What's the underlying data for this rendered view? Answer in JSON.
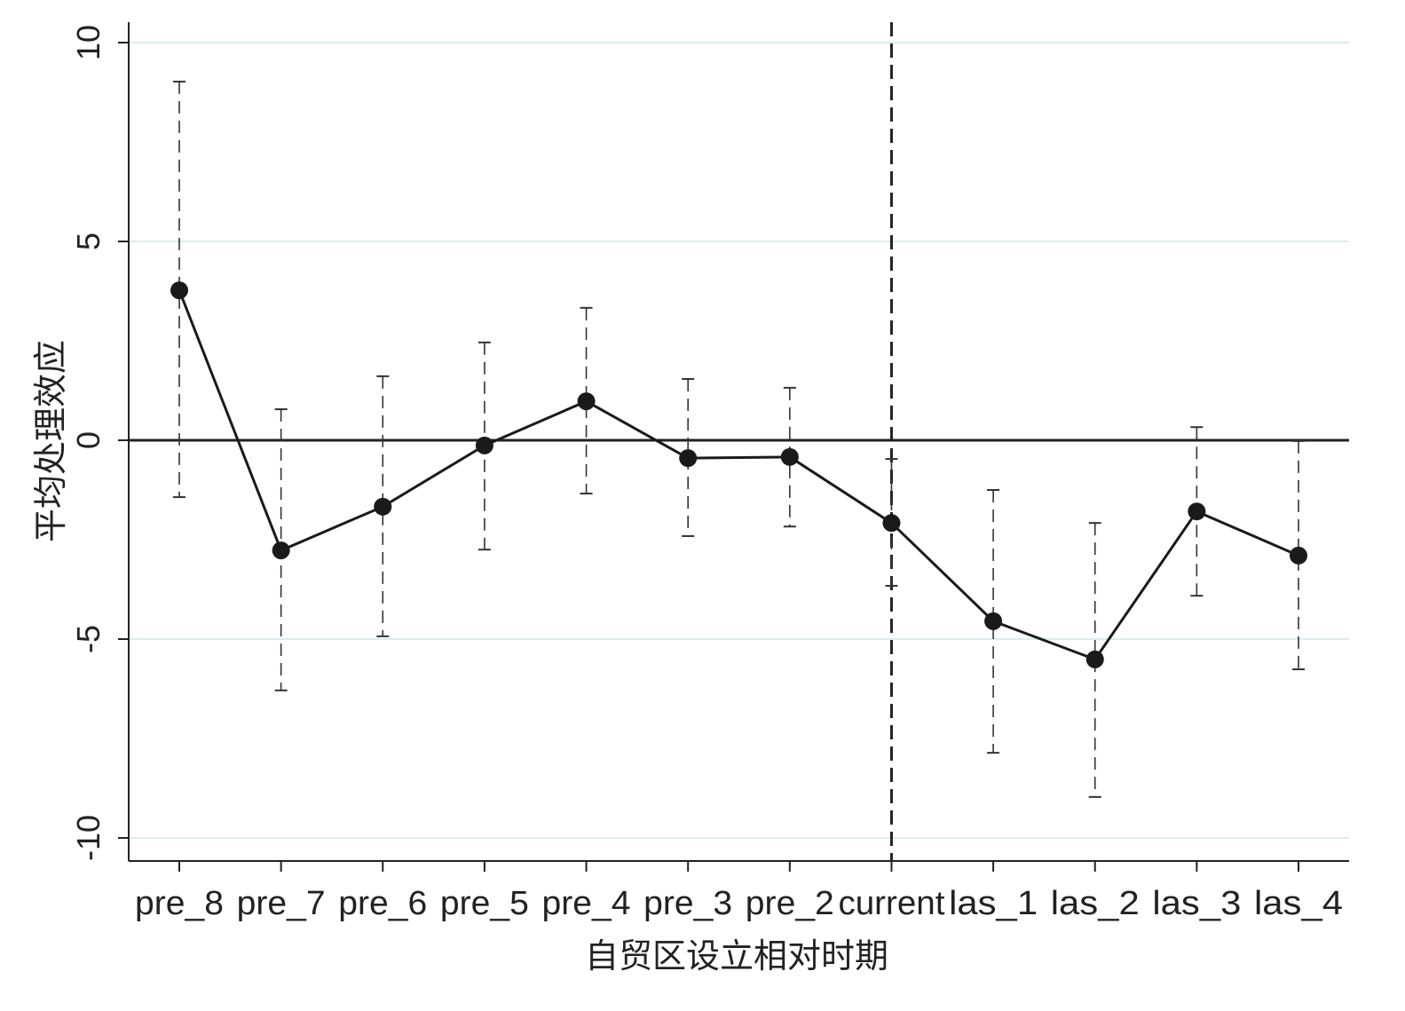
{
  "chart_data": {
    "type": "line",
    "title": "",
    "xlabel": "自贸区设立相对时期",
    "ylabel": "平均处理效应",
    "categories": [
      "pre_8",
      "pre_7",
      "pre_6",
      "pre_5",
      "pre_4",
      "pre_3",
      "pre_2",
      "current",
      "las_1",
      "las_2",
      "las_3",
      "las_4"
    ],
    "series": [
      {
        "name": "平均处理效应",
        "values": [
          3.77,
          -2.77,
          -1.67,
          -0.13,
          0.98,
          -0.45,
          -0.42,
          -2.08,
          -4.55,
          -5.51,
          -1.79,
          -2.9
        ],
        "ci_upper": [
          9.02,
          0.78,
          1.61,
          2.46,
          3.33,
          1.54,
          1.32,
          -0.47,
          -1.25,
          -2.08,
          0.33,
          -0.02
        ],
        "ci_lower": [
          -1.43,
          -6.29,
          -4.93,
          -2.75,
          -1.34,
          -2.41,
          -2.17,
          -3.66,
          -7.86,
          -8.97,
          -3.91,
          -5.76
        ]
      }
    ],
    "ylim": [
      -10.5,
      10.5
    ],
    "yticks": [
      10,
      5,
      0,
      -5,
      -10
    ],
    "ytick_labels": [
      "10",
      "5",
      "0",
      "-5",
      "-10"
    ],
    "reference_hline": 0,
    "reference_vline": "current",
    "grid": true,
    "colors": {
      "line": "#1a1a1a",
      "grid": "#dcecef",
      "ci": "#333333"
    }
  }
}
